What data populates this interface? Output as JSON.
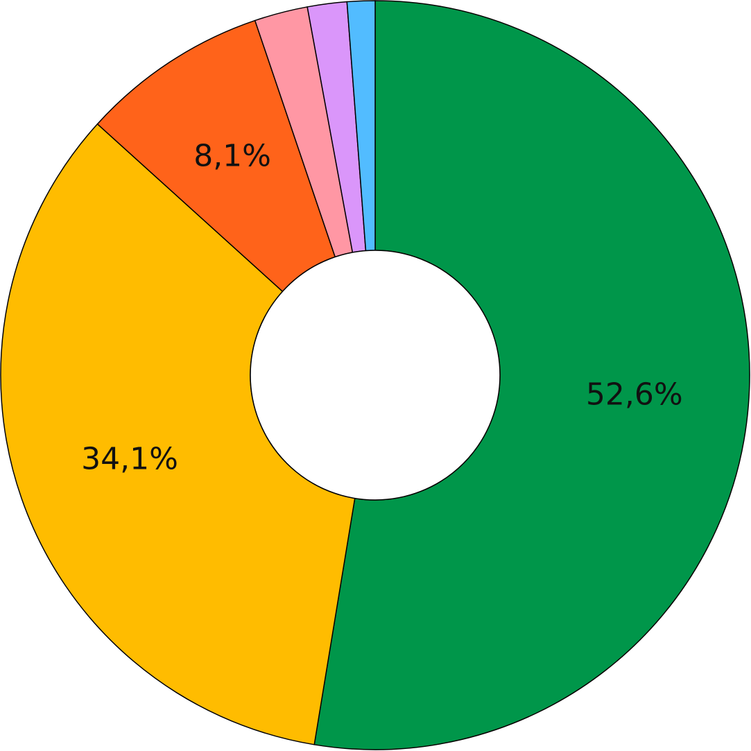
{
  "chart_data": {
    "type": "pie",
    "style": "donut",
    "start_angle_deg": 0,
    "direction": "clockwise",
    "slices": [
      {
        "value": 52.6,
        "label": "52,6%",
        "color": "#00964A"
      },
      {
        "value": 34.1,
        "label": "34,1%",
        "color": "#FFBC00"
      },
      {
        "value": 8.1,
        "label": "8,1%",
        "color": "#FF631A"
      },
      {
        "value": 2.3,
        "label": "",
        "color": "#FF97A4"
      },
      {
        "value": 1.7,
        "label": "",
        "color": "#DA96FA"
      },
      {
        "value": 1.2,
        "label": "",
        "color": "#52BCFF"
      }
    ],
    "title": "",
    "legend": "none"
  }
}
